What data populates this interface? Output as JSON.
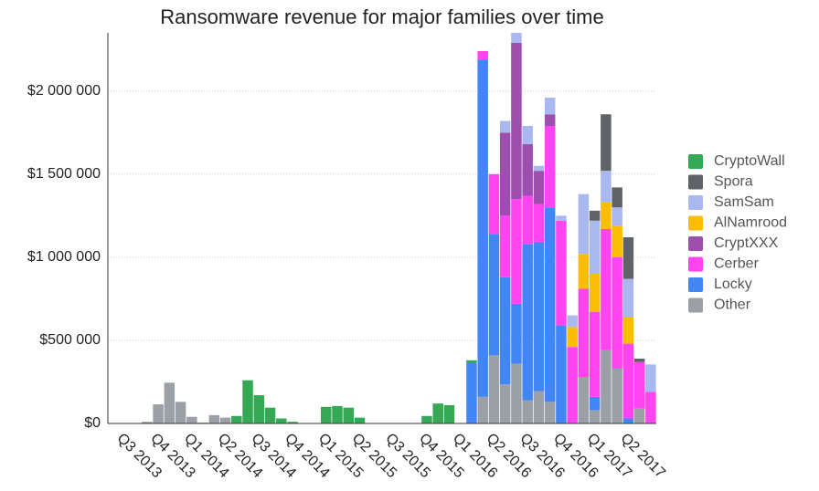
{
  "chart_data": {
    "type": "stacked-bar",
    "title": "Ransomware revenue for major families over time",
    "categories": [
      null,
      "Q3 2013",
      null,
      null,
      "Q4 2013",
      null,
      null,
      "Q1 2014",
      null,
      null,
      "Q2 2014",
      null,
      null,
      "Q3 2014",
      null,
      null,
      "Q4 2014",
      null,
      null,
      "Q1 2015",
      null,
      null,
      "Q2 2015",
      null,
      null,
      "Q3 2015",
      null,
      null,
      "Q4 2015",
      null,
      null,
      "Q1 2016",
      null,
      null,
      "Q2 2016",
      null,
      null,
      "Q3 2016",
      null,
      null,
      "Q4 2016",
      null,
      null,
      "Q1 2017",
      null,
      null,
      "Q2 2017",
      null,
      null
    ],
    "series": [
      {
        "name": "CryptoWall",
        "color": "#34a853",
        "values": [
          null,
          null,
          null,
          null,
          null,
          null,
          null,
          null,
          null,
          null,
          null,
          45000,
          260000,
          170000,
          95000,
          30000,
          10000,
          null,
          null,
          100000,
          105000,
          95000,
          35000,
          null,
          null,
          null,
          null,
          null,
          45000,
          120000,
          110000,
          null,
          15000,
          null,
          null,
          null,
          null,
          null,
          null,
          null,
          null,
          null,
          null,
          null,
          null,
          null,
          null,
          null,
          null
        ]
      },
      {
        "name": "Spora",
        "color": "#5f6368",
        "values": [
          null,
          null,
          null,
          null,
          null,
          null,
          null,
          null,
          null,
          null,
          null,
          null,
          null,
          null,
          null,
          null,
          null,
          null,
          null,
          null,
          null,
          null,
          null,
          null,
          null,
          null,
          null,
          null,
          null,
          null,
          null,
          null,
          null,
          null,
          null,
          null,
          null,
          null,
          null,
          null,
          null,
          null,
          null,
          60000,
          340000,
          120000,
          250000,
          20000,
          null
        ]
      },
      {
        "name": "SamSam",
        "color": "#aab8f0",
        "values": [
          null,
          null,
          null,
          null,
          null,
          null,
          null,
          null,
          null,
          null,
          null,
          null,
          null,
          null,
          null,
          null,
          null,
          null,
          null,
          null,
          null,
          null,
          null,
          null,
          null,
          null,
          null,
          null,
          null,
          null,
          null,
          null,
          null,
          null,
          null,
          70000,
          60000,
          110000,
          30000,
          100000,
          30000,
          70000,
          360000,
          320000,
          190000,
          110000,
          230000,
          null,
          165000
        ]
      },
      {
        "name": "AlNamrood",
        "color": "#fbbc04",
        "values": [
          null,
          null,
          null,
          null,
          null,
          null,
          null,
          null,
          null,
          null,
          null,
          null,
          null,
          null,
          null,
          null,
          null,
          null,
          null,
          null,
          null,
          null,
          null,
          null,
          null,
          null,
          null,
          null,
          null,
          null,
          null,
          null,
          null,
          null,
          null,
          null,
          null,
          null,
          null,
          null,
          null,
          120000,
          210000,
          230000,
          160000,
          190000,
          160000,
          null,
          null
        ]
      },
      {
        "name": "CryptXXX",
        "color": "#9c4fad",
        "values": [
          null,
          null,
          null,
          null,
          null,
          null,
          null,
          null,
          null,
          null,
          null,
          null,
          null,
          null,
          null,
          null,
          null,
          null,
          null,
          null,
          null,
          null,
          null,
          null,
          null,
          null,
          null,
          null,
          null,
          null,
          null,
          null,
          null,
          null,
          null,
          500000,
          940000,
          310000,
          200000,
          70000,
          null,
          null,
          null,
          null,
          null,
          null,
          null,
          null,
          null
        ]
      },
      {
        "name": "Cerber",
        "color": "#ff44f0",
        "values": [
          null,
          null,
          null,
          null,
          null,
          null,
          null,
          null,
          null,
          null,
          null,
          null,
          null,
          null,
          null,
          null,
          null,
          null,
          null,
          null,
          null,
          null,
          null,
          null,
          null,
          null,
          null,
          null,
          null,
          null,
          null,
          null,
          null,
          50000,
          360000,
          370000,
          630000,
          290000,
          230000,
          490000,
          630000,
          460000,
          530000,
          510000,
          730000,
          670000,
          450000,
          280000,
          190000
        ]
      },
      {
        "name": "Locky",
        "color": "#4285f4",
        "values": [
          null,
          null,
          null,
          null,
          null,
          null,
          null,
          null,
          null,
          null,
          null,
          null,
          null,
          null,
          null,
          null,
          null,
          null,
          null,
          null,
          null,
          null,
          null,
          null,
          null,
          null,
          null,
          null,
          null,
          null,
          null,
          null,
          365000,
          2030000,
          730000,
          645000,
          360000,
          940000,
          895000,
          1170000,
          590000,
          null,
          null,
          80000,
          null,
          null,
          30000,
          null,
          null
        ]
      },
      {
        "name": "Other",
        "color": "#9aa0a6",
        "values": [
          null,
          null,
          null,
          10000,
          115000,
          245000,
          130000,
          40000,
          5000,
          50000,
          35000,
          null,
          null,
          null,
          null,
          null,
          null,
          null,
          null,
          null,
          null,
          null,
          null,
          null,
          null,
          null,
          null,
          null,
          null,
          null,
          null,
          null,
          null,
          160000,
          410000,
          235000,
          360000,
          140000,
          195000,
          130000,
          null,
          null,
          280000,
          80000,
          440000,
          330000,
          null,
          90000,
          null
        ]
      }
    ],
    "ylim": [
      0,
      2350000
    ],
    "yticks": [
      {
        "value": 0,
        "label": "$0"
      },
      {
        "value": 500000,
        "label": "$500 000"
      },
      {
        "value": 1000000,
        "label": "$1 000 000"
      },
      {
        "value": 1500000,
        "label": "$1 500 000"
      },
      {
        "value": 2000000,
        "label": "$2 000 000"
      }
    ],
    "grid": true,
    "legend": "right"
  }
}
